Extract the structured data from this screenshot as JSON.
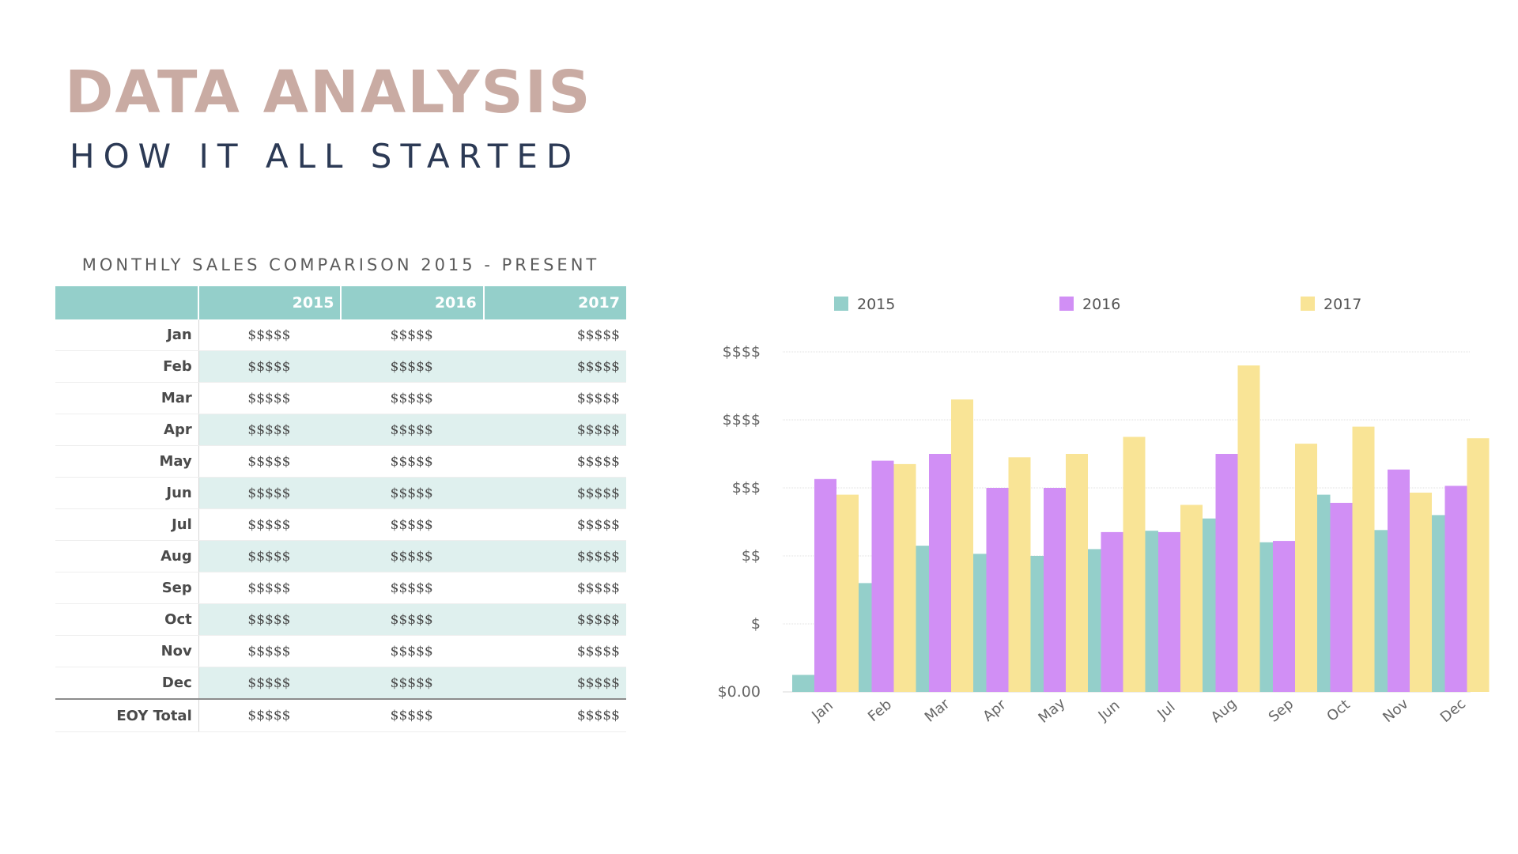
{
  "title": "DATA ANALYSIS",
  "subtitle": "HOW IT ALL STARTED",
  "colors": {
    "title": "#c9aba3",
    "subtitle": "#2c3a55",
    "table_title": "#5b5b5b",
    "header_bg": "#94cfca",
    "band_bg": "#dff0ee",
    "series_2015": "#94cfca",
    "series_2016": "#d18ff5",
    "series_2017": "#f9e496"
  },
  "table": {
    "title": "MONTHLY SALES COMPARISON 2015 - PRESENT",
    "headers": [
      "",
      "2015",
      "2016",
      "2017"
    ],
    "rows": [
      {
        "label": "Jan",
        "values": [
          "$$$$$",
          "$$$$$",
          "$$$$$"
        ]
      },
      {
        "label": "Feb",
        "values": [
          "$$$$$",
          "$$$$$",
          "$$$$$"
        ]
      },
      {
        "label": "Mar",
        "values": [
          "$$$$$",
          "$$$$$",
          "$$$$$"
        ]
      },
      {
        "label": "Apr",
        "values": [
          "$$$$$",
          "$$$$$",
          "$$$$$"
        ]
      },
      {
        "label": "May",
        "values": [
          "$$$$$",
          "$$$$$",
          "$$$$$"
        ]
      },
      {
        "label": "Jun",
        "values": [
          "$$$$$",
          "$$$$$",
          "$$$$$"
        ]
      },
      {
        "label": "Jul",
        "values": [
          "$$$$$",
          "$$$$$",
          "$$$$$"
        ]
      },
      {
        "label": "Aug",
        "values": [
          "$$$$$",
          "$$$$$",
          "$$$$$"
        ]
      },
      {
        "label": "Sep",
        "values": [
          "$$$$$",
          "$$$$$",
          "$$$$$"
        ]
      },
      {
        "label": "Oct",
        "values": [
          "$$$$$",
          "$$$$$",
          "$$$$$"
        ]
      },
      {
        "label": "Nov",
        "values": [
          "$$$$$",
          "$$$$$",
          "$$$$$"
        ]
      },
      {
        "label": "Dec",
        "values": [
          "$$$$$",
          "$$$$$",
          "$$$$$"
        ]
      }
    ],
    "total": {
      "label": "EOY Total",
      "values": [
        "$$$$$",
        "$$$$$",
        "$$$$$"
      ]
    }
  },
  "chart_data": {
    "type": "bar",
    "categories": [
      "Jan",
      "Feb",
      "Mar",
      "Apr",
      "May",
      "Jun",
      "Jul",
      "Aug",
      "Sep",
      "Oct",
      "Nov",
      "Dec"
    ],
    "series": [
      {
        "name": "2015",
        "values": [
          0.25,
          1.6,
          2.15,
          2.03,
          2.0,
          2.1,
          2.37,
          2.55,
          2.2,
          2.9,
          2.38,
          2.6
        ]
      },
      {
        "name": "2016",
        "values": [
          3.13,
          3.4,
          3.5,
          3.0,
          3.0,
          2.35,
          2.35,
          3.5,
          2.22,
          2.78,
          3.27,
          3.03
        ]
      },
      {
        "name": "2017",
        "values": [
          2.9,
          3.35,
          4.3,
          3.45,
          3.5,
          3.75,
          2.75,
          4.8,
          3.65,
          3.9,
          2.93,
          3.73
        ]
      }
    ],
    "y_ticks": [
      {
        "value": 0,
        "label": "$0.00"
      },
      {
        "value": 1,
        "label": "$"
      },
      {
        "value": 2,
        "label": "$$"
      },
      {
        "value": 3,
        "label": "$$$"
      },
      {
        "value": 4,
        "label": "$$$$"
      },
      {
        "value": 5,
        "label": "$$$$"
      }
    ],
    "ylim": [
      0,
      5
    ],
    "grid": true,
    "legend_position": "top",
    "xlabel": "",
    "ylabel": "",
    "title": ""
  }
}
